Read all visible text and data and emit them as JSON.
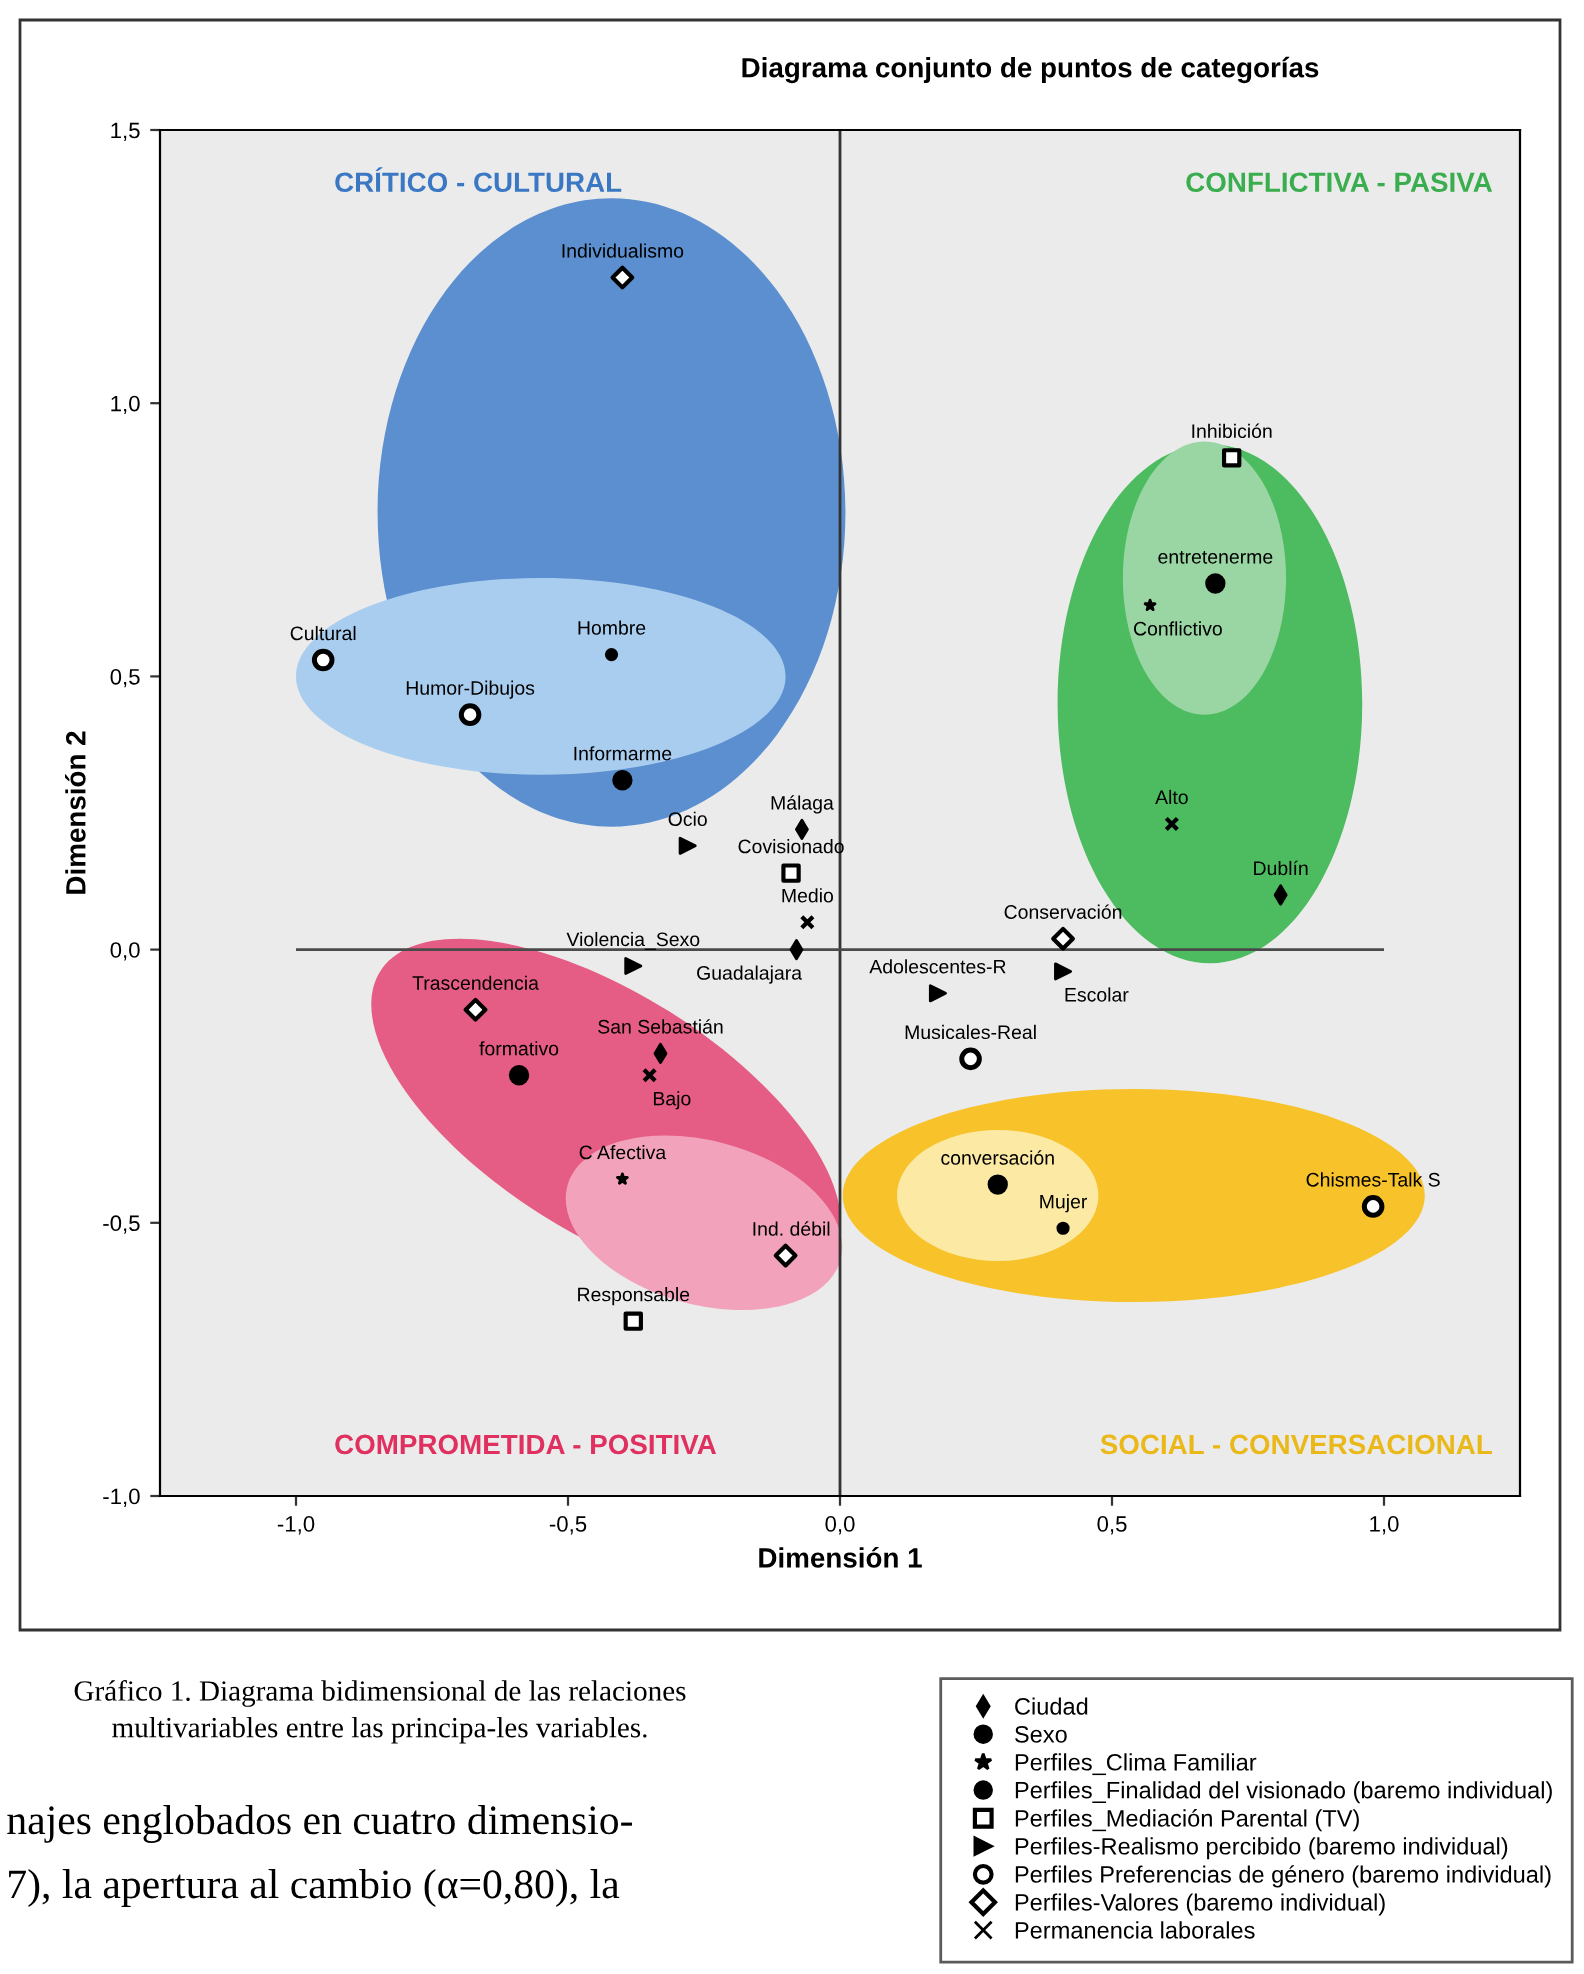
{
  "chart_data": {
    "type": "scatter",
    "title": "Diagrama conjunto de puntos de categorías",
    "xlabel": "Dimensión 1",
    "ylabel": "Dimensión 2",
    "xlim": [
      -1.25,
      1.25
    ],
    "ylim": [
      -1.0,
      1.5
    ],
    "xticks": [
      {
        "value": -1.0,
        "label": "-1,0"
      },
      {
        "value": -0.5,
        "label": "-0,5"
      },
      {
        "value": 0.0,
        "label": "0,0"
      },
      {
        "value": 0.5,
        "label": "0,5"
      },
      {
        "value": 1.0,
        "label": "1,0"
      }
    ],
    "yticks": [
      {
        "value": -1.0,
        "label": "-1,0"
      },
      {
        "value": -0.5,
        "label": "-0,5"
      },
      {
        "value": 0.0,
        "label": "0,0"
      },
      {
        "value": 0.5,
        "label": "0,5"
      },
      {
        "value": 1.0,
        "label": "1,0"
      },
      {
        "value": 1.5,
        "label": "1,5"
      }
    ],
    "grid": false,
    "legend": "bottom right",
    "ref_lines": [
      {
        "axis": "x",
        "value": 0.0,
        "color": "#333333"
      },
      {
        "axis": "y",
        "value": 0.0,
        "color": "#4a4a4a"
      }
    ],
    "series": [
      {
        "name": "Ciudad",
        "color": "#000000",
        "marker": "diamond",
        "x": [
          -0.07,
          -0.08,
          -0.33,
          0.81
        ],
        "values": [
          0.22,
          0.0,
          -0.19,
          0.1
        ]
      },
      {
        "name": "Sexo",
        "color": "#000000",
        "marker": "circle",
        "x": [
          -0.42,
          0.41
        ],
        "values": [
          0.54,
          -0.51
        ]
      },
      {
        "name": "Perfiles_Clima Familiar",
        "color": "#000000",
        "marker": "star",
        "x": [
          0.57,
          -0.4
        ],
        "values": [
          0.63,
          -0.42
        ]
      },
      {
        "name": "Perfiles_Finalidad del visionado (baremo individual)",
        "color": "#000000",
        "marker": "circle",
        "x": [
          -0.4,
          0.69,
          -0.59,
          0.29
        ],
        "values": [
          0.31,
          0.67,
          -0.23,
          -0.43
        ]
      },
      {
        "name": "Perfiles_Mediación Parental (TV)",
        "color": "#000000",
        "marker": "square",
        "x": [
          -0.09,
          0.72,
          -0.38
        ],
        "values": [
          0.14,
          0.9,
          -0.68
        ]
      },
      {
        "name": "Perfiles-Realismo percibido (baremo individual)",
        "color": "#000000",
        "marker": "triangle",
        "x": [
          -0.28,
          -0.38,
          0.18,
          0.41
        ],
        "values": [
          0.19,
          -0.03,
          -0.08,
          -0.04
        ]
      },
      {
        "name": "Perfiles Preferencias de género (baremo individual)",
        "color": "#000000",
        "marker": "circle",
        "x": [
          -0.95,
          -0.68,
          0.24,
          0.98
        ],
        "values": [
          0.53,
          0.43,
          -0.2,
          -0.47
        ]
      },
      {
        "name": "Perfiles-Valores (baremo individual)",
        "color": "#000000",
        "marker": "diamond",
        "x": [
          -0.4,
          0.41,
          -0.67,
          -0.1
        ],
        "values": [
          1.23,
          0.02,
          -0.11,
          -0.56
        ]
      },
      {
        "name": "Permanencia laborales",
        "color": "#000000",
        "marker": "cross",
        "x": [
          -0.06,
          0.61,
          -0.35
        ],
        "values": [
          0.05,
          0.23,
          -0.23
        ]
      }
    ],
    "annotations": [
      {
        "text": "Málaga",
        "x": -0.07,
        "y": 0.22
      },
      {
        "text": "Guadalajara",
        "x": -0.08,
        "y": 0.0
      },
      {
        "text": "San Sebastián",
        "x": -0.33,
        "y": -0.19
      },
      {
        "text": "Dublín",
        "x": 0.81,
        "y": 0.1
      },
      {
        "text": "Hombre",
        "x": -0.42,
        "y": 0.54
      },
      {
        "text": "Mujer",
        "x": 0.41,
        "y": -0.51
      },
      {
        "text": "Conflictivo",
        "x": 0.57,
        "y": 0.63
      },
      {
        "text": "C Afectiva",
        "x": -0.4,
        "y": -0.42
      },
      {
        "text": "Informarme",
        "x": -0.4,
        "y": 0.31
      },
      {
        "text": "entretenerme",
        "x": 0.69,
        "y": 0.67
      },
      {
        "text": "formativo",
        "x": -0.59,
        "y": -0.23
      },
      {
        "text": "conversación",
        "x": 0.29,
        "y": -0.43
      },
      {
        "text": "Covisionado",
        "x": -0.09,
        "y": 0.14
      },
      {
        "text": "Inhibición",
        "x": 0.72,
        "y": 0.9
      },
      {
        "text": "Responsable",
        "x": -0.38,
        "y": -0.68
      },
      {
        "text": "Ocio",
        "x": -0.28,
        "y": 0.19
      },
      {
        "text": "Violencia_Sexo",
        "x": -0.38,
        "y": -0.03
      },
      {
        "text": "Adolescentes-R",
        "x": 0.18,
        "y": -0.08
      },
      {
        "text": "Escolar",
        "x": 0.41,
        "y": -0.04
      },
      {
        "text": "Cultural",
        "x": -0.95,
        "y": 0.53
      },
      {
        "text": "Humor-Dibujos",
        "x": -0.68,
        "y": 0.43
      },
      {
        "text": "Musicales-Real",
        "x": 0.24,
        "y": -0.2
      },
      {
        "text": "Chismes-Talk S",
        "x": 0.98,
        "y": -0.47
      },
      {
        "text": "Individualismo",
        "x": -0.4,
        "y": 1.23
      },
      {
        "text": "Conservación",
        "x": 0.41,
        "y": 0.02
      },
      {
        "text": "Trascendencia",
        "x": -0.67,
        "y": -0.11
      },
      {
        "text": "Ind. débil",
        "x": -0.1,
        "y": -0.56
      },
      {
        "text": "Medio",
        "x": -0.06,
        "y": 0.05
      },
      {
        "text": "Alto",
        "x": 0.61,
        "y": 0.23
      },
      {
        "text": "Bajo",
        "x": -0.35,
        "y": -0.23
      },
      "CRÍTICO - CULTURAL",
      "CONFLICTIVA - PASIVA",
      "COMPROMETIDA - POSITIVA",
      "SOCIAL - CONVERSACIONAL",
      "Gráfico 1. Diagrama bidimensional de las relaciones multivariables entre las principa-les variables.",
      "najes englobados en cuatro dimensio-",
      "7), la apertura al cambio (α=0,80), la"
    ]
  }
}
